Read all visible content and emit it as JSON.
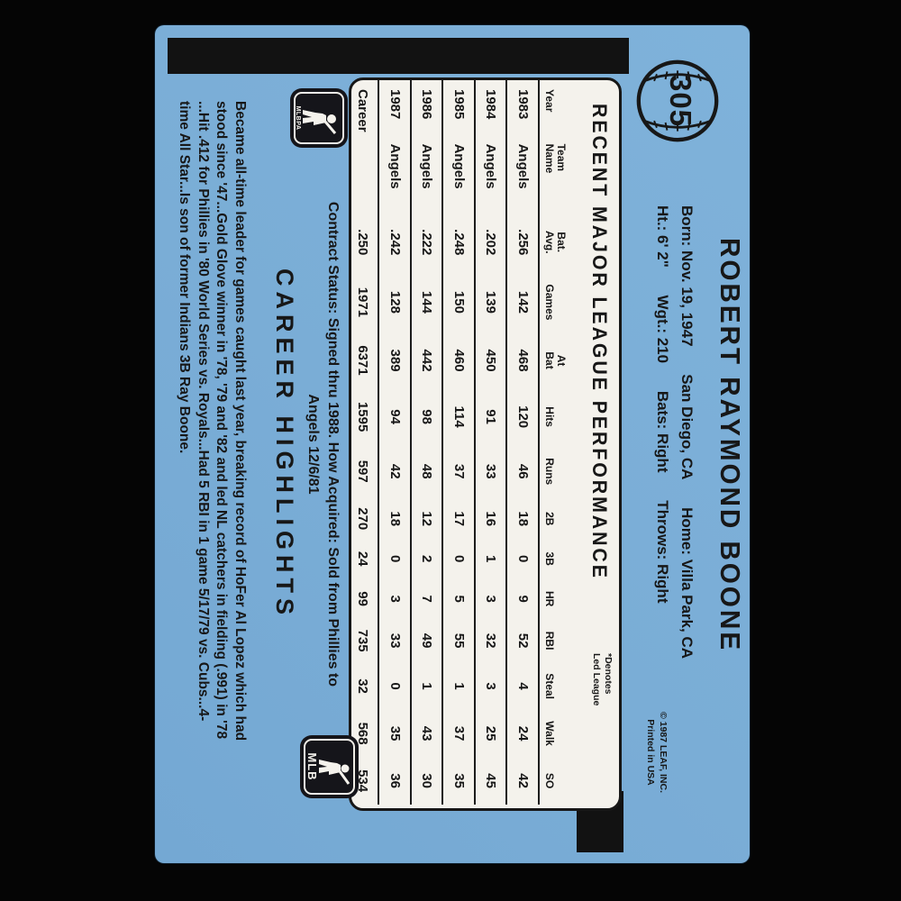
{
  "card": {
    "number": "305",
    "player_name": "ROBERT RAYMOND BOONE",
    "bio_line1": {
      "born": "Born: Nov. 19, 1947",
      "birthplace": "San Diego, CA",
      "home": "Home: Villa Park, CA"
    },
    "bio_line2": {
      "height": "Ht.: 6' 2\"",
      "weight": "Wgt.: 210",
      "bats": "Bats: Right",
      "throws": "Throws: Right"
    },
    "copyright_line1": "© 1987 LEAF, INC.",
    "copyright_line2": "Printed in USA",
    "stats_box_title": "RECENT MAJOR LEAGUE PERFORMANCE",
    "denotes_line1": "*Denotes",
    "denotes_line2": "Led League",
    "contract_line1": "Contract Status: Signed thru 1988. How Acquired: Sold from Phillies to",
    "contract_line2": "Angels 12/6/81",
    "career_highlights_title": "CAREER HIGHLIGHTS",
    "career_highlights_lines": [
      "Became all-time leader for games caught last year, breaking record of HoFer Al Lopez which had",
      "stood since '47...Gold Glove winner in '78, '79 and '82 and led NL catchers in fielding (.991) in '78",
      "...Hit .412 for Phillies in '80 World Series vs. Royals...Had 5 RBI in 1 game 5/17/79 vs. Cubs...4-",
      "time All Star...Is son of former Indians 3B Ray Boone."
    ],
    "logos": {
      "mlbpa": "MLBPA",
      "mlb": "MLB"
    },
    "colors": {
      "card_blue": "#7aadd6",
      "ink": "#171717",
      "box_bg": "#f4f2ec",
      "photo_bg": "#050505"
    }
  },
  "chart_data": {
    "type": "table",
    "title": "RECENT MAJOR LEAGUE PERFORMANCE",
    "columns": [
      "Year",
      "Team\nName",
      "Bat.\nAvg.",
      "Games",
      "At\nBat",
      "Hits",
      "Runs",
      "2B",
      "3B",
      "HR",
      "RBI",
      "Steal",
      "Walk",
      "SO"
    ],
    "rows": [
      [
        "1983",
        "Angels",
        ".256",
        "142",
        "468",
        "120",
        "46",
        "18",
        "0",
        "9",
        "52",
        "4",
        "24",
        "42"
      ],
      [
        "1984",
        "Angels",
        ".202",
        "139",
        "450",
        "91",
        "33",
        "16",
        "1",
        "3",
        "32",
        "3",
        "25",
        "45"
      ],
      [
        "1985",
        "Angels",
        ".248",
        "150",
        "460",
        "114",
        "37",
        "17",
        "0",
        "5",
        "55",
        "1",
        "37",
        "35"
      ],
      [
        "1986",
        "Angels",
        ".222",
        "144",
        "442",
        "98",
        "48",
        "12",
        "2",
        "7",
        "49",
        "1",
        "43",
        "30"
      ],
      [
        "1987",
        "Angels",
        ".242",
        "128",
        "389",
        "94",
        "42",
        "18",
        "0",
        "3",
        "33",
        "0",
        "35",
        "36"
      ],
      [
        "Career",
        "",
        ".250",
        "1971",
        "6371",
        "1595",
        "597",
        "270",
        "24",
        "99",
        "735",
        "32",
        "568",
        "534"
      ]
    ]
  }
}
